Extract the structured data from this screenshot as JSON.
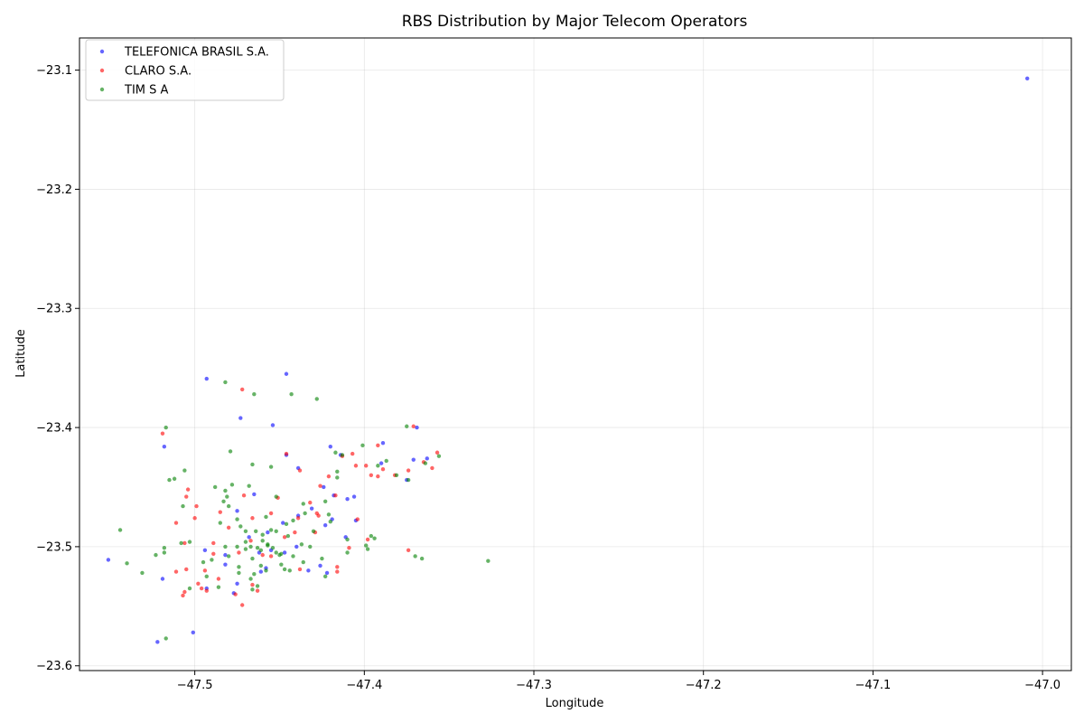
{
  "chart_data": {
    "type": "scatter",
    "title": "RBS Distribution by Major Telecom Operators",
    "xlabel": "Longitude",
    "ylabel": "Latitude",
    "xlim": [
      -47.568,
      -46.983
    ],
    "ylim": [
      -23.604,
      -23.073
    ],
    "x_ticks": [
      -47.5,
      -47.4,
      -47.3,
      -47.2,
      -47.1,
      -47.0
    ],
    "x_tick_labels": [
      "−47.5",
      "−47.4",
      "−47.3",
      "−47.2",
      "−47.1",
      "−47.0"
    ],
    "y_ticks": [
      -23.6,
      -23.5,
      -23.4,
      -23.3,
      -23.2,
      -23.1
    ],
    "y_tick_labels": [
      "−23.6",
      "−23.5",
      "−23.4",
      "−23.3",
      "−23.2",
      "−23.1"
    ],
    "grid": true,
    "legend_position": "top-left",
    "series": [
      {
        "name": "TELEFONICA BRASIL S.A.",
        "color": "#0000ff",
        "points": [
          [
            -47.009,
            -23.107
          ],
          [
            -47.493,
            -23.359
          ],
          [
            -47.446,
            -23.355
          ],
          [
            -47.473,
            -23.392
          ],
          [
            -47.454,
            -23.398
          ],
          [
            -47.369,
            -23.4
          ],
          [
            -47.371,
            -23.427
          ],
          [
            -47.363,
            -23.426
          ],
          [
            -47.375,
            -23.444
          ],
          [
            -47.389,
            -23.413
          ],
          [
            -47.42,
            -23.416
          ],
          [
            -47.439,
            -23.434
          ],
          [
            -47.446,
            -23.423
          ],
          [
            -47.424,
            -23.45
          ],
          [
            -47.41,
            -23.46
          ],
          [
            -47.406,
            -23.458
          ],
          [
            -47.418,
            -23.457
          ],
          [
            -47.465,
            -23.456
          ],
          [
            -47.475,
            -23.47
          ],
          [
            -47.439,
            -23.474
          ],
          [
            -47.423,
            -23.482
          ],
          [
            -47.419,
            -23.477
          ],
          [
            -47.411,
            -23.492
          ],
          [
            -47.405,
            -23.478
          ],
          [
            -47.518,
            -23.416
          ],
          [
            -47.494,
            -23.503
          ],
          [
            -47.482,
            -23.507
          ],
          [
            -47.462,
            -23.505
          ],
          [
            -47.455,
            -23.503
          ],
          [
            -47.447,
            -23.505
          ],
          [
            -47.44,
            -23.5
          ],
          [
            -47.426,
            -23.516
          ],
          [
            -47.433,
            -23.52
          ],
          [
            -47.422,
            -23.522
          ],
          [
            -47.458,
            -23.518
          ],
          [
            -47.461,
            -23.521
          ],
          [
            -47.475,
            -23.531
          ],
          [
            -47.482,
            -23.515
          ],
          [
            -47.551,
            -23.511
          ],
          [
            -47.519,
            -23.527
          ],
          [
            -47.522,
            -23.58
          ],
          [
            -47.501,
            -23.572
          ],
          [
            -47.477,
            -23.539
          ],
          [
            -47.493,
            -23.535
          ],
          [
            -47.468,
            -23.492
          ],
          [
            -47.457,
            -23.488
          ],
          [
            -47.448,
            -23.48
          ],
          [
            -47.431,
            -23.468
          ],
          [
            -47.414,
            -23.423
          ],
          [
            -47.39,
            -23.43
          ]
        ]
      },
      {
        "name": "CLARO S.A.",
        "color": "#ff0000",
        "points": [
          [
            -47.472,
            -23.368
          ],
          [
            -47.519,
            -23.405
          ],
          [
            -47.371,
            -23.399
          ],
          [
            -47.392,
            -23.415
          ],
          [
            -47.357,
            -23.421
          ],
          [
            -47.36,
            -23.434
          ],
          [
            -47.365,
            -23.429
          ],
          [
            -47.374,
            -23.436
          ],
          [
            -47.389,
            -23.435
          ],
          [
            -47.392,
            -23.441
          ],
          [
            -47.396,
            -23.44
          ],
          [
            -47.407,
            -23.422
          ],
          [
            -47.405,
            -23.432
          ],
          [
            -47.413,
            -23.424
          ],
          [
            -47.446,
            -23.422
          ],
          [
            -47.438,
            -23.436
          ],
          [
            -47.421,
            -23.441
          ],
          [
            -47.426,
            -23.449
          ],
          [
            -47.432,
            -23.463
          ],
          [
            -47.428,
            -23.472
          ],
          [
            -47.417,
            -23.457
          ],
          [
            -47.451,
            -23.459
          ],
          [
            -47.471,
            -23.457
          ],
          [
            -47.499,
            -23.466
          ],
          [
            -47.504,
            -23.452
          ],
          [
            -47.505,
            -23.458
          ],
          [
            -47.511,
            -23.48
          ],
          [
            -47.5,
            -23.476
          ],
          [
            -47.485,
            -23.471
          ],
          [
            -47.48,
            -23.484
          ],
          [
            -47.466,
            -23.476
          ],
          [
            -47.455,
            -23.472
          ],
          [
            -47.439,
            -23.476
          ],
          [
            -47.441,
            -23.488
          ],
          [
            -47.429,
            -23.488
          ],
          [
            -47.404,
            -23.477
          ],
          [
            -47.398,
            -23.494
          ],
          [
            -47.409,
            -23.501
          ],
          [
            -47.374,
            -23.503
          ],
          [
            -47.506,
            -23.497
          ],
          [
            -47.489,
            -23.497
          ],
          [
            -47.489,
            -23.506
          ],
          [
            -47.474,
            -23.505
          ],
          [
            -47.46,
            -23.507
          ],
          [
            -47.455,
            -23.508
          ],
          [
            -47.438,
            -23.519
          ],
          [
            -47.416,
            -23.517
          ],
          [
            -47.416,
            -23.521
          ],
          [
            -47.466,
            -23.532
          ],
          [
            -47.463,
            -23.537
          ],
          [
            -47.486,
            -23.527
          ],
          [
            -47.494,
            -23.52
          ],
          [
            -47.511,
            -23.521
          ],
          [
            -47.505,
            -23.519
          ],
          [
            -47.498,
            -23.531
          ],
          [
            -47.496,
            -23.535
          ],
          [
            -47.493,
            -23.537
          ],
          [
            -47.507,
            -23.541
          ],
          [
            -47.506,
            -23.538
          ],
          [
            -47.476,
            -23.54
          ],
          [
            -47.472,
            -23.549
          ],
          [
            -47.467,
            -23.495
          ],
          [
            -47.447,
            -23.492
          ],
          [
            -47.427,
            -23.474
          ],
          [
            -47.399,
            -23.432
          ],
          [
            -47.382,
            -23.44
          ]
        ]
      },
      {
        "name": "TIM S A",
        "color": "#008000",
        "points": [
          [
            -47.482,
            -23.362
          ],
          [
            -47.465,
            -23.372
          ],
          [
            -47.443,
            -23.372
          ],
          [
            -47.428,
            -23.376
          ],
          [
            -47.517,
            -23.4
          ],
          [
            -47.375,
            -23.399
          ],
          [
            -47.356,
            -23.424
          ],
          [
            -47.364,
            -23.43
          ],
          [
            -47.374,
            -23.444
          ],
          [
            -47.381,
            -23.44
          ],
          [
            -47.387,
            -23.428
          ],
          [
            -47.392,
            -23.432
          ],
          [
            -47.401,
            -23.415
          ],
          [
            -47.413,
            -23.423
          ],
          [
            -47.417,
            -23.421
          ],
          [
            -47.416,
            -23.437
          ],
          [
            -47.416,
            -23.442
          ],
          [
            -47.479,
            -23.42
          ],
          [
            -47.466,
            -23.431
          ],
          [
            -47.455,
            -23.433
          ],
          [
            -47.506,
            -23.436
          ],
          [
            -47.512,
            -23.443
          ],
          [
            -47.515,
            -23.444
          ],
          [
            -47.488,
            -23.45
          ],
          [
            -47.482,
            -23.453
          ],
          [
            -47.478,
            -23.448
          ],
          [
            -47.468,
            -23.449
          ],
          [
            -47.481,
            -23.458
          ],
          [
            -47.483,
            -23.462
          ],
          [
            -47.48,
            -23.466
          ],
          [
            -47.507,
            -23.466
          ],
          [
            -47.452,
            -23.458
          ],
          [
            -47.436,
            -23.464
          ],
          [
            -47.435,
            -23.472
          ],
          [
            -47.423,
            -23.462
          ],
          [
            -47.421,
            -23.473
          ],
          [
            -47.42,
            -23.479
          ],
          [
            -47.475,
            -23.477
          ],
          [
            -47.473,
            -23.483
          ],
          [
            -47.47,
            -23.487
          ],
          [
            -47.464,
            -23.487
          ],
          [
            -47.46,
            -23.49
          ],
          [
            -47.46,
            -23.495
          ],
          [
            -47.457,
            -23.499
          ],
          [
            -47.454,
            -23.501
          ],
          [
            -47.452,
            -23.505
          ],
          [
            -47.449,
            -23.506
          ],
          [
            -47.455,
            -23.486
          ],
          [
            -47.452,
            -23.487
          ],
          [
            -47.446,
            -23.481
          ],
          [
            -47.445,
            -23.491
          ],
          [
            -47.442,
            -23.478
          ],
          [
            -47.432,
            -23.5
          ],
          [
            -47.437,
            -23.498
          ],
          [
            -47.467,
            -23.5
          ],
          [
            -47.47,
            -23.502
          ],
          [
            -47.475,
            -23.5
          ],
          [
            -47.463,
            -23.501
          ],
          [
            -47.466,
            -23.51
          ],
          [
            -47.461,
            -23.516
          ],
          [
            -47.458,
            -23.52
          ],
          [
            -47.465,
            -23.523
          ],
          [
            -47.467,
            -23.527
          ],
          [
            -47.474,
            -23.522
          ],
          [
            -47.474,
            -23.517
          ],
          [
            -47.48,
            -23.508
          ],
          [
            -47.482,
            -23.5
          ],
          [
            -47.485,
            -23.48
          ],
          [
            -47.49,
            -23.511
          ],
          [
            -47.495,
            -23.513
          ],
          [
            -47.493,
            -23.525
          ],
          [
            -47.486,
            -23.534
          ],
          [
            -47.466,
            -23.536
          ],
          [
            -47.463,
            -23.533
          ],
          [
            -47.503,
            -23.535
          ],
          [
            -47.503,
            -23.496
          ],
          [
            -47.508,
            -23.497
          ],
          [
            -47.518,
            -23.501
          ],
          [
            -47.523,
            -23.507
          ],
          [
            -47.518,
            -23.505
          ],
          [
            -47.544,
            -23.486
          ],
          [
            -47.54,
            -23.514
          ],
          [
            -47.531,
            -23.522
          ],
          [
            -47.517,
            -23.577
          ],
          [
            -47.425,
            -23.51
          ],
          [
            -47.423,
            -23.525
          ],
          [
            -47.436,
            -23.513
          ],
          [
            -47.444,
            -23.52
          ],
          [
            -47.447,
            -23.519
          ],
          [
            -47.449,
            -23.515
          ],
          [
            -47.41,
            -23.505
          ],
          [
            -47.41,
            -23.494
          ],
          [
            -47.394,
            -23.493
          ],
          [
            -47.396,
            -23.491
          ],
          [
            -47.399,
            -23.499
          ],
          [
            -47.398,
            -23.502
          ],
          [
            -47.366,
            -23.51
          ],
          [
            -47.37,
            -23.508
          ],
          [
            -47.327,
            -23.512
          ],
          [
            -47.442,
            -23.508
          ],
          [
            -47.458,
            -23.475
          ],
          [
            -47.47,
            -23.496
          ],
          [
            -47.457,
            -23.498
          ],
          [
            -47.461,
            -23.503
          ],
          [
            -47.45,
            -23.507
          ],
          [
            -47.43,
            -23.487
          ]
        ]
      }
    ]
  }
}
